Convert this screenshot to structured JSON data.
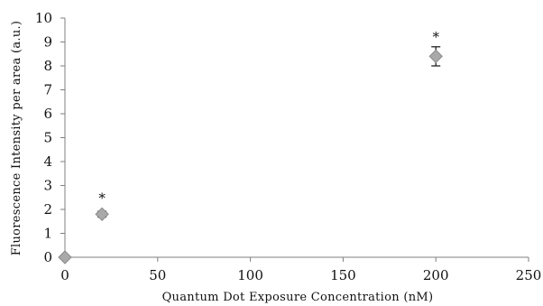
{
  "chart_data": {
    "type": "scatter",
    "title": "",
    "xlabel": "Quantum Dot Exposure Concentration (nM)",
    "ylabel": "Fluorescence Intensity per area (a.u.)",
    "xlim": [
      0,
      250
    ],
    "ylim": [
      0,
      10
    ],
    "x_ticks": [
      "0",
      "50",
      "100",
      "150",
      "200",
      "250"
    ],
    "y_ticks": [
      "0",
      "1",
      "2",
      "3",
      "4",
      "5",
      "6",
      "7",
      "8",
      "9",
      "10"
    ],
    "grid": false,
    "legend": "none",
    "marker": "diamond",
    "colors": {
      "marker_fill": "#a9a9a9",
      "marker_stroke": "#8a8a8a",
      "axis": "#7f7f7f",
      "error_bar": "#222222"
    },
    "series": [
      {
        "points": [
          {
            "x": 0,
            "y": 0.0,
            "error": 0.05,
            "label": ""
          },
          {
            "x": 20,
            "y": 1.8,
            "error": 0.12,
            "label": "*"
          },
          {
            "x": 200,
            "y": 8.4,
            "error": 0.4,
            "label": "*"
          }
        ]
      }
    ]
  }
}
